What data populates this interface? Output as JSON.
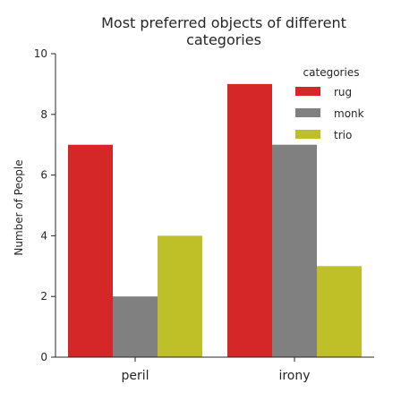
{
  "chart_data": {
    "type": "bar",
    "title_lines": [
      "Most preferred objects of different",
      "categories"
    ],
    "xlabel": "",
    "ylabel": "Number of People",
    "categories": [
      "peril",
      "irony"
    ],
    "series": [
      {
        "name": "rug",
        "values": [
          7,
          9
        ],
        "color": "#d62728"
      },
      {
        "name": "monk",
        "values": [
          2,
          7
        ],
        "color": "#808080"
      },
      {
        "name": "trio",
        "values": [
          4,
          3
        ],
        "color": "#bfbf28"
      }
    ],
    "ylim": [
      0,
      10
    ],
    "yticks": [
      0,
      2,
      4,
      6,
      8,
      10
    ],
    "legend": {
      "title": "categories",
      "placement": "top-right"
    },
    "grid": false
  }
}
